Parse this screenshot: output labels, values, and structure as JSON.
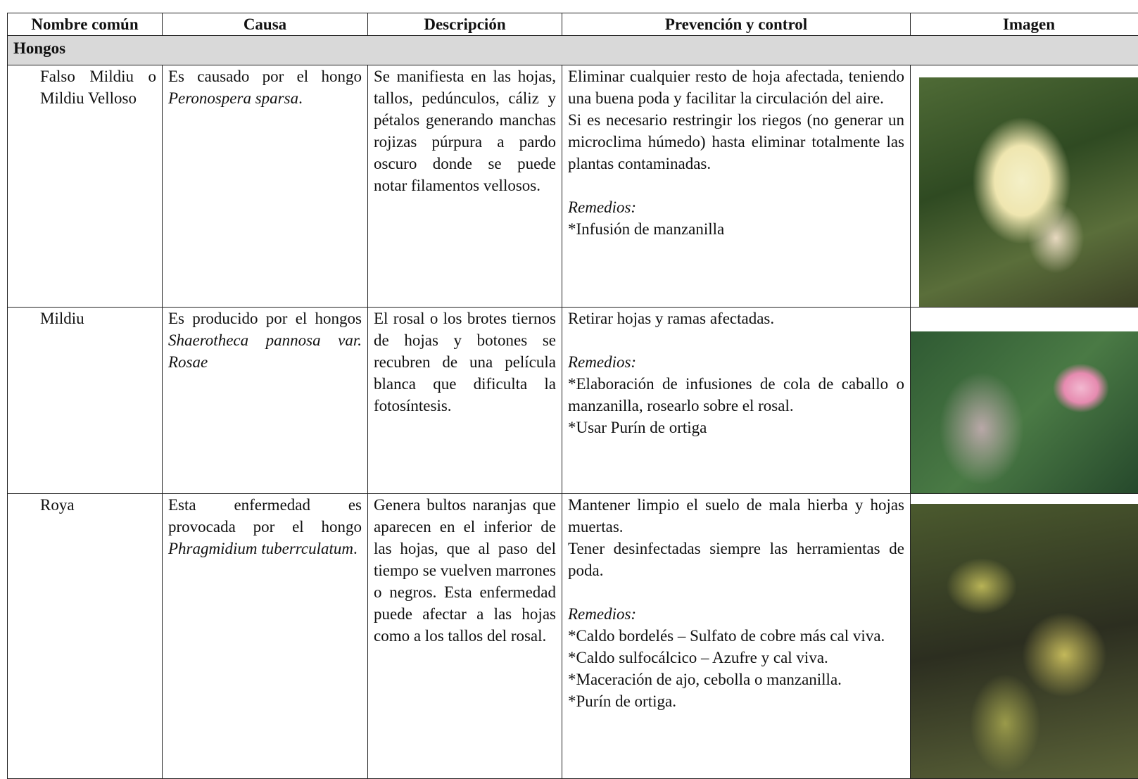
{
  "table": {
    "columns": [
      "Nombre común",
      "Causa",
      "Descripción",
      "Prevención y control",
      "Imagen"
    ],
    "group": "Hongos",
    "rows": [
      {
        "nombre": "Falso Mildiu o Mildiu Velloso",
        "causa": [
          {
            "text": "Es causado por el hongo "
          },
          {
            "text": "Peronospera sparsa",
            "italic": true
          },
          {
            "text": "."
          }
        ],
        "descripcion": "Se manifiesta en las hojas, tallos, pedúnculos, cáliz y pétalos generando manchas rojizas púrpura a pardo oscuro donde se puede notar filamentos vellosos.",
        "prevencion": [
          [
            {
              "text": "Eliminar cualquier resto de hoja afectada, teniendo una buena poda y facilitar la circulación del aire."
            }
          ],
          [
            {
              "text": "Si es necesario restringir los riegos (no generar un microclima húmedo) hasta eliminar totalmente las plantas contaminadas."
            }
          ],
          [
            {
              "text": "Remedios:",
              "italic": true
            }
          ],
          [
            {
              "text": "*Infusión de manzanilla"
            }
          ]
        ]
      },
      {
        "nombre": "Mildiu",
        "causa": [
          {
            "text": "Es producido por el hongos "
          },
          {
            "text": "Shaerotheca pannosa var. Rosae",
            "italic": true
          }
        ],
        "descripcion": "El rosal o los brotes tiernos de hojas y botones se recubren de una película blanca que dificulta la fotosíntesis.",
        "prevencion": [
          [
            {
              "text": "Retirar hojas y ramas afectadas."
            }
          ],
          [
            {
              "text": "Remedios:",
              "italic": true
            }
          ],
          [
            {
              "text": "*Elaboración de infusiones de cola de caballo o manzanilla, rosearlo sobre el rosal."
            }
          ],
          [
            {
              "text": "*Usar Purín de ortiga"
            }
          ]
        ]
      },
      {
        "nombre": "Roya",
        "causa": [
          {
            "text": "Esta enfermedad es provocada por el hongo "
          },
          {
            "text": "Phragmidium tuberrculatum",
            "italic": true
          },
          {
            "text": "."
          }
        ],
        "descripcion": "Genera bultos naranjas que aparecen en el inferior de las hojas, que al paso del tiempo se vuelven marrones o negros. Esta enfermedad puede afectar a las hojas como a los tallos del rosal.",
        "prevencion": [
          [
            {
              "text": "Mantener limpio el suelo de mala hierba y hojas muertas."
            }
          ],
          [
            {
              "text": "Tener desinfectadas siempre las herramientas de poda."
            }
          ],
          [
            {
              "text": "Remedios:",
              "italic": true
            }
          ],
          [
            {
              "text": "*Caldo bordelés – Sulfato de cobre más cal viva."
            }
          ],
          [
            {
              "text": "*Caldo sulfocálcico – Azufre y cal viva."
            }
          ],
          [
            {
              "text": "*Maceración de ajo, cebolla o manzanilla."
            }
          ],
          [
            {
              "text": "*Purín de ortiga."
            }
          ]
        ]
      }
    ]
  }
}
